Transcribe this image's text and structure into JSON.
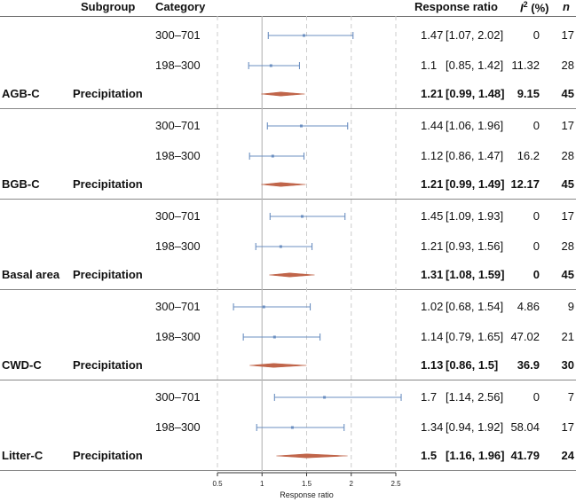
{
  "headers": {
    "subgroup": "Subgroup",
    "category": "Category",
    "response_ratio": "Response ratio",
    "i2_symbol": "I",
    "i2_sup": "2",
    "i2_suffix": " (%)",
    "n": "n"
  },
  "chart_data": {
    "type": "forest",
    "xlabel": "Response ratio",
    "xlim": [
      0.5,
      2.5
    ],
    "ticks": [
      0.5,
      1,
      1.5,
      2,
      2.5
    ],
    "tick_labels": [
      "0.5",
      "1",
      "1.5",
      "2",
      "2.5"
    ],
    "reference_line": 1,
    "colors": {
      "point": "#6b8fc1",
      "diamond": "#c0654a",
      "grid": "#cccccc",
      "ref": "#bbbbbb"
    },
    "groups": [
      {
        "name": "AGB-C",
        "subgroup": "Precipitation",
        "rows": [
          {
            "category": "300–701",
            "rr": 1.47,
            "ci_text": "[1.07, 2.02]",
            "lo": 1.07,
            "hi": 2.02,
            "i2": "0",
            "n": "17"
          },
          {
            "category": "198–300",
            "rr": 1.1,
            "ci_text": "[0.85, 1.42]",
            "lo": 0.85,
            "hi": 1.42,
            "i2": "11.32",
            "n": "28"
          }
        ],
        "summary": {
          "rr": 1.21,
          "ci_text": "[0.99, 1.48]",
          "lo": 0.99,
          "hi": 1.48,
          "i2": "9.15",
          "n": "45"
        }
      },
      {
        "name": "BGB-C",
        "subgroup": "Precipitation",
        "rows": [
          {
            "category": "300–701",
            "rr": 1.44,
            "ci_text": "[1.06, 1.96]",
            "lo": 1.06,
            "hi": 1.96,
            "i2": "0",
            "n": "17"
          },
          {
            "category": "198–300",
            "rr": 1.12,
            "ci_text": "[0.86, 1.47]",
            "lo": 0.86,
            "hi": 1.47,
            "i2": "16.2",
            "n": "28"
          }
        ],
        "summary": {
          "rr": 1.21,
          "ci_text": "[0.99, 1.49]",
          "lo": 0.99,
          "hi": 1.49,
          "i2": "12.17",
          "n": "45"
        }
      },
      {
        "name": "Basal area",
        "subgroup": "Precipitation",
        "rows": [
          {
            "category": "300–701",
            "rr": 1.45,
            "ci_text": "[1.09, 1.93]",
            "lo": 1.09,
            "hi": 1.93,
            "i2": "0",
            "n": "17"
          },
          {
            "category": "198–300",
            "rr": 1.21,
            "ci_text": "[0.93, 1.56]",
            "lo": 0.93,
            "hi": 1.56,
            "i2": "0",
            "n": "28"
          }
        ],
        "summary": {
          "rr": 1.31,
          "ci_text": "[1.08, 1.59]",
          "lo": 1.08,
          "hi": 1.59,
          "i2": "0",
          "n": "45"
        }
      },
      {
        "name": "CWD-C",
        "subgroup": "Precipitation",
        "rows": [
          {
            "category": "300–701",
            "rr": 1.02,
            "ci_text": "[0.68, 1.54]",
            "lo": 0.68,
            "hi": 1.54,
            "i2": "4.86",
            "n": "9"
          },
          {
            "category": "198–300",
            "rr": 1.14,
            "ci_text": "[0.79, 1.65]",
            "lo": 0.79,
            "hi": 1.65,
            "i2": "47.02",
            "n": "21"
          }
        ],
        "summary": {
          "rr": 1.13,
          "ci_text": "[0.86, 1.5]",
          "lo": 0.86,
          "hi": 1.5,
          "i2": "36.9",
          "n": "30"
        }
      },
      {
        "name": "Litter-C",
        "subgroup": "Precipitation",
        "rows": [
          {
            "category": "300–701",
            "rr": 1.7,
            "ci_text": "[1.14, 2.56]",
            "lo": 1.14,
            "hi": 2.56,
            "i2": "0",
            "n": "7"
          },
          {
            "category": "198–300",
            "rr": 1.34,
            "ci_text": "[0.94, 1.92]",
            "lo": 0.94,
            "hi": 1.92,
            "i2": "58.04",
            "n": "17"
          }
        ],
        "summary": {
          "rr": 1.5,
          "ci_text": "[1.16, 1.96]",
          "lo": 1.16,
          "hi": 1.96,
          "i2": "41.79",
          "n": "24"
        }
      }
    ]
  }
}
